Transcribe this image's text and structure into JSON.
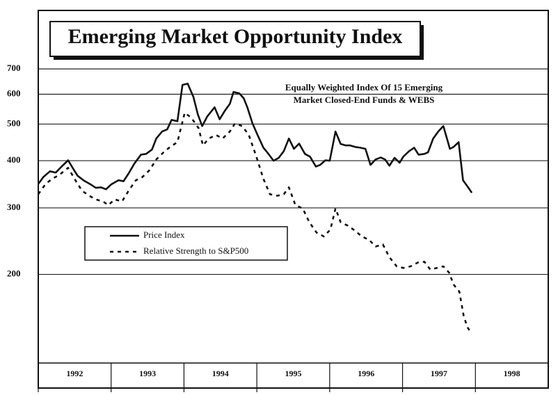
{
  "chart_data": {
    "type": "line",
    "title": "Emerging Market Opportunity Index",
    "annotation": [
      "Equally Weighted Index Of 15 Emerging",
      "Market Closed-End Funds & WEBS"
    ],
    "log_scale": true,
    "grid": true,
    "xlim": [
      1992,
      1999
    ],
    "ylim": [
      100,
      1000
    ],
    "yticks": [
      200,
      300,
      400,
      500,
      600,
      700
    ],
    "x_labels": [
      1992,
      1993,
      1994,
      1995,
      1996,
      1997,
      1998
    ],
    "series": [
      {
        "name": "Price Index",
        "color": "#111111",
        "dashed": false,
        "x": [
          1992.0,
          1992.07,
          1992.16,
          1992.24,
          1992.32,
          1992.41,
          1992.49,
          1992.54,
          1992.62,
          1992.72,
          1992.79,
          1992.86,
          1992.93,
          1993.0,
          1993.1,
          1993.17,
          1993.24,
          1993.32,
          1993.41,
          1993.48,
          1993.56,
          1993.62,
          1993.7,
          1993.77,
          1993.83,
          1993.91,
          1993.98,
          1994.05,
          1994.13,
          1994.19,
          1994.25,
          1994.32,
          1994.42,
          1994.49,
          1994.56,
          1994.63,
          1994.68,
          1994.76,
          1994.82,
          1994.87,
          1994.94,
          1995.01,
          1995.09,
          1995.15,
          1995.23,
          1995.3,
          1995.37,
          1995.44,
          1995.51,
          1995.58,
          1995.66,
          1995.73,
          1995.81,
          1995.87,
          1995.94,
          1996.0,
          1996.08,
          1996.15,
          1996.22,
          1996.28,
          1996.35,
          1996.42,
          1996.49,
          1996.56,
          1996.63,
          1996.7,
          1996.76,
          1996.82,
          1996.89,
          1996.96,
          1997.01,
          1997.09,
          1997.16,
          1997.22,
          1997.3,
          1997.35,
          1997.42,
          1997.49,
          1997.56,
          1997.61,
          1997.65,
          1997.7,
          1997.77,
          1997.83,
          1997.9,
          1997.95
        ],
        "values": [
          347,
          362,
          375,
          372,
          386,
          401,
          378,
          365,
          355,
          346,
          339,
          340,
          336,
          346,
          355,
          353,
          370,
          393,
          415,
          417,
          428,
          458,
          478,
          484,
          513,
          509,
          635,
          640,
          590,
          531,
          494,
          524,
          554,
          515,
          542,
          566,
          608,
          603,
          585,
          554,
          502,
          468,
          433,
          419,
          400,
          407,
          424,
          458,
          430,
          444,
          417,
          410,
          386,
          390,
          401,
          400,
          478,
          443,
          439,
          439,
          435,
          433,
          430,
          390,
          403,
          408,
          403,
          388,
          407,
          395,
          410,
          424,
          433,
          415,
          417,
          421,
          458,
          478,
          494,
          458,
          430,
          435,
          448,
          355,
          340,
          329
        ]
      },
      {
        "name": "Relative Strength to S&P500",
        "color": "#111111",
        "dashed": true,
        "x": [
          1992.0,
          1992.1,
          1992.19,
          1992.29,
          1992.41,
          1992.51,
          1992.6,
          1992.7,
          1992.79,
          1992.89,
          1992.96,
          1993.05,
          1993.15,
          1993.24,
          1993.34,
          1993.43,
          1993.53,
          1993.62,
          1993.72,
          1993.81,
          1993.91,
          1994.01,
          1994.1,
          1994.2,
          1994.26,
          1994.34,
          1994.44,
          1994.53,
          1994.63,
          1994.7,
          1994.8,
          1994.89,
          1994.99,
          1995.09,
          1995.18,
          1995.28,
          1995.37,
          1995.44,
          1995.53,
          1995.63,
          1995.72,
          1995.82,
          1995.92,
          1996.01,
          1996.08,
          1996.15,
          1996.25,
          1996.35,
          1996.44,
          1996.54,
          1996.63,
          1996.73,
          1996.82,
          1996.92,
          1997.01,
          1997.11,
          1997.21,
          1997.3,
          1997.38,
          1997.47,
          1997.56,
          1997.64,
          1997.7,
          1997.78,
          1997.84,
          1997.89,
          1997.93
        ],
        "values": [
          326,
          347,
          358,
          367,
          383,
          355,
          333,
          323,
          316,
          312,
          305,
          316,
          312,
          333,
          355,
          362,
          378,
          403,
          421,
          435,
          448,
          536,
          520,
          488,
          439,
          458,
          468,
          458,
          478,
          502,
          494,
          468,
          412,
          358,
          326,
          323,
          326,
          340,
          305,
          299,
          275,
          258,
          252,
          263,
          299,
          275,
          269,
          261,
          252,
          247,
          237,
          240,
          222,
          210,
          208,
          210,
          215,
          216,
          206,
          208,
          210,
          202,
          188,
          180,
          155,
          145,
          141
        ]
      }
    ]
  }
}
